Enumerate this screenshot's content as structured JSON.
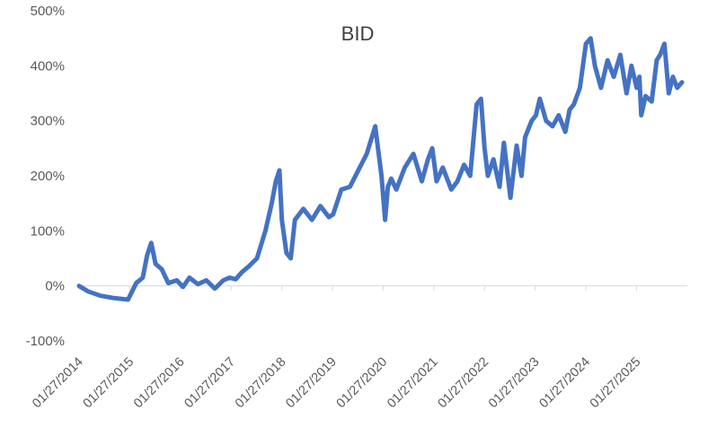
{
  "chart_data": {
    "type": "line",
    "title": "BID",
    "xlabel": "",
    "ylabel": "",
    "ylim": [
      -100,
      500
    ],
    "y_ticks": [
      "500%",
      "400%",
      "300%",
      "200%",
      "100%",
      "0%",
      "-100%"
    ],
    "x_tick_labels": [
      "01/27/2014",
      "01/27/2015",
      "01/27/2016",
      "01/27/2017",
      "01/27/2018",
      "01/27/2019",
      "01/27/2020",
      "01/27/2021",
      "01/27/2022",
      "01/27/2023",
      "01/27/2024",
      "01/27/2025"
    ],
    "xlim": [
      "2014-01-27",
      "2026-01-27"
    ],
    "grid": false,
    "legend": "none",
    "line_color": "#4472C4",
    "series": [
      {
        "x": [
          "2014-01-27",
          "2014-04-01",
          "2014-07-01",
          "2014-10-01",
          "2015-01-15",
          "2015-03-15",
          "2015-05-01",
          "2015-06-01",
          "2015-07-01",
          "2015-08-01",
          "2015-09-15",
          "2015-11-01",
          "2016-01-01",
          "2016-02-15",
          "2016-04-01",
          "2016-06-01",
          "2016-08-01",
          "2016-10-01",
          "2016-12-01",
          "2017-01-15",
          "2017-03-01",
          "2017-04-15",
          "2017-06-01",
          "2017-08-01",
          "2017-10-01",
          "2017-11-15",
          "2017-12-15",
          "2018-01-10",
          "2018-01-27",
          "2018-03-01",
          "2018-04-01",
          "2018-05-01",
          "2018-07-01",
          "2018-09-01",
          "2018-11-01",
          "2019-01-01",
          "2019-02-01",
          "2019-04-01",
          "2019-06-01",
          "2019-08-01",
          "2019-10-01",
          "2019-12-01",
          "2020-01-15",
          "2020-02-10",
          "2020-03-01",
          "2020-03-25",
          "2020-05-01",
          "2020-07-01",
          "2020-09-01",
          "2020-11-01",
          "2020-12-15",
          "2021-01-15",
          "2021-02-15",
          "2021-04-01",
          "2021-06-01",
          "2021-07-15",
          "2021-09-01",
          "2021-10-15",
          "2021-12-01",
          "2022-01-01",
          "2022-01-27",
          "2022-02-20",
          "2022-04-01",
          "2022-05-15",
          "2022-06-15",
          "2022-08-01",
          "2022-09-15",
          "2022-10-20",
          "2022-11-15",
          "2023-01-01",
          "2023-02-01",
          "2023-03-01",
          "2023-04-15",
          "2023-06-01",
          "2023-07-15",
          "2023-09-01",
          "2023-10-01",
          "2023-11-01",
          "2023-12-15",
          "2024-01-27",
          "2024-03-01",
          "2024-04-01",
          "2024-05-15",
          "2024-07-01",
          "2024-08-15",
          "2024-10-01",
          "2024-11-15",
          "2024-12-20",
          "2025-01-27",
          "2025-02-15",
          "2025-03-01",
          "2025-04-01",
          "2025-05-15",
          "2025-06-20",
          "2025-07-15",
          "2025-08-15",
          "2025-09-15",
          "2025-10-15",
          "2025-11-15",
          "2025-12-20"
        ],
        "values": [
          0,
          -10,
          -18,
          -22,
          -25,
          5,
          15,
          55,
          78,
          40,
          30,
          5,
          10,
          -2,
          15,
          3,
          10,
          -5,
          10,
          15,
          12,
          25,
          35,
          50,
          100,
          150,
          190,
          210,
          120,
          60,
          50,
          120,
          140,
          120,
          145,
          125,
          130,
          175,
          180,
          210,
          240,
          290,
          200,
          120,
          180,
          195,
          175,
          215,
          240,
          190,
          230,
          250,
          190,
          215,
          175,
          190,
          220,
          200,
          330,
          340,
          250,
          200,
          230,
          180,
          260,
          160,
          255,
          200,
          270,
          300,
          310,
          340,
          300,
          290,
          310,
          280,
          320,
          330,
          360,
          440,
          450,
          400,
          360,
          410,
          380,
          420,
          350,
          400,
          360,
          380,
          310,
          345,
          335,
          410,
          420,
          440,
          350,
          380,
          360,
          370
        ]
      }
    ]
  }
}
